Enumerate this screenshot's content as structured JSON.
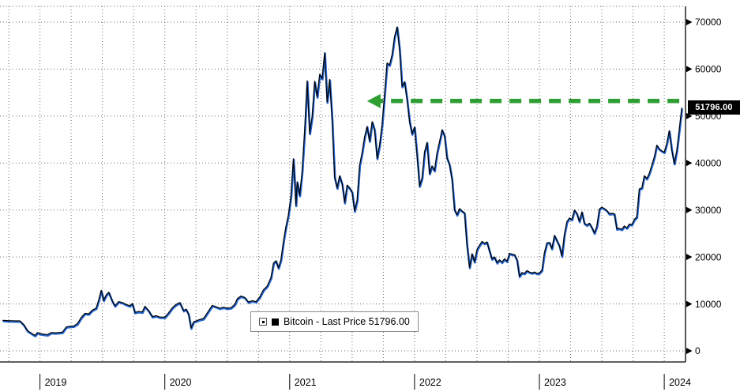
{
  "chart_data": {
    "type": "line",
    "x_range": [
      2018.68,
      2024.17
    ],
    "x_ticks": [
      {
        "t": 2019,
        "label": "2019"
      },
      {
        "t": 2020,
        "label": "2020"
      },
      {
        "t": 2021,
        "label": "2021"
      },
      {
        "t": 2022,
        "label": "2022"
      },
      {
        "t": 2023,
        "label": "2023"
      },
      {
        "t": 2024,
        "label": "2024"
      }
    ],
    "y_ticks": [
      0,
      10000,
      20000,
      30000,
      40000,
      50000,
      60000,
      70000
    ],
    "y_max": 70000,
    "grid": "dotted",
    "legend_position": "bottom-center",
    "last_price": 51796.0,
    "last_price_label": "51796.00",
    "legend": {
      "label": "Bitcoin - Last Price 51796.00"
    },
    "annotation_arrow": {
      "shape": "horizontal-dashed-arrow",
      "direction": "left",
      "color": "#2f9e33",
      "y_value": 53200,
      "x_from": 2024.12,
      "x_to": 2021.62
    },
    "series": [
      {
        "name": "Bitcoin - Last Price",
        "line_colors": {
          "main": "#000000",
          "halo": "#2465cf"
        },
        "points": [
          [
            2018.7,
            6500
          ],
          [
            2018.75,
            6450
          ],
          [
            2018.8,
            6400
          ],
          [
            2018.84,
            6400
          ],
          [
            2018.87,
            5600
          ],
          [
            2018.9,
            4300
          ],
          [
            2018.93,
            3800
          ],
          [
            2018.96,
            3300
          ],
          [
            2018.98,
            3900
          ],
          [
            2019,
            3700
          ],
          [
            2019.03,
            3550
          ],
          [
            2019.06,
            3450
          ],
          [
            2019.09,
            3900
          ],
          [
            2019.12,
            3850
          ],
          [
            2019.15,
            3900
          ],
          [
            2019.18,
            4000
          ],
          [
            2019.21,
            5100
          ],
          [
            2019.24,
            5250
          ],
          [
            2019.27,
            5300
          ],
          [
            2019.3,
            5800
          ],
          [
            2019.33,
            7100
          ],
          [
            2019.36,
            8000
          ],
          [
            2019.39,
            7900
          ],
          [
            2019.42,
            8700
          ],
          [
            2019.45,
            9100
          ],
          [
            2019.47,
            10800
          ],
          [
            2019.49,
            12900
          ],
          [
            2019.51,
            10800
          ],
          [
            2019.53,
            11900
          ],
          [
            2019.55,
            12500
          ],
          [
            2019.58,
            10600
          ],
          [
            2019.6,
            9600
          ],
          [
            2019.63,
            10500
          ],
          [
            2019.66,
            10300
          ],
          [
            2019.69,
            9900
          ],
          [
            2019.72,
            9600
          ],
          [
            2019.74,
            10100
          ],
          [
            2019.76,
            8200
          ],
          [
            2019.79,
            8400
          ],
          [
            2019.82,
            8300
          ],
          [
            2019.84,
            9500
          ],
          [
            2019.87,
            8600
          ],
          [
            2019.9,
            7300
          ],
          [
            2019.93,
            7500
          ],
          [
            2019.96,
            7200
          ],
          [
            2019.98,
            7200
          ],
          [
            2020,
            7200
          ],
          [
            2020.03,
            8100
          ],
          [
            2020.06,
            9200
          ],
          [
            2020.09,
            9900
          ],
          [
            2020.12,
            10300
          ],
          [
            2020.15,
            8600
          ],
          [
            2020.17,
            8900
          ],
          [
            2020.19,
            7900
          ],
          [
            2020.21,
            4900
          ],
          [
            2020.23,
            6200
          ],
          [
            2020.25,
            6400
          ],
          [
            2020.28,
            6700
          ],
          [
            2020.31,
            6900
          ],
          [
            2020.33,
            7700
          ],
          [
            2020.36,
            8900
          ],
          [
            2020.38,
            9700
          ],
          [
            2020.41,
            9400
          ],
          [
            2020.44,
            9100
          ],
          [
            2020.47,
            9300
          ],
          [
            2020.5,
            9100
          ],
          [
            2020.53,
            9200
          ],
          [
            2020.56,
            9900
          ],
          [
            2020.58,
            11100
          ],
          [
            2020.61,
            11700
          ],
          [
            2020.64,
            11400
          ],
          [
            2020.67,
            10400
          ],
          [
            2020.7,
            10700
          ],
          [
            2020.73,
            10500
          ],
          [
            2020.76,
            11500
          ],
          [
            2020.79,
            13000
          ],
          [
            2020.82,
            13800
          ],
          [
            2020.85,
            15600
          ],
          [
            2020.87,
            18700
          ],
          [
            2020.89,
            19200
          ],
          [
            2020.91,
            17700
          ],
          [
            2020.93,
            19400
          ],
          [
            2020.95,
            23300
          ],
          [
            2020.97,
            26500
          ],
          [
            2020.99,
            29000
          ],
          [
            2021.01,
            33000
          ],
          [
            2021.03,
            40900
          ],
          [
            2021.05,
            31000
          ],
          [
            2021.06,
            36000
          ],
          [
            2021.08,
            33100
          ],
          [
            2021.1,
            38300
          ],
          [
            2021.12,
            47000
          ],
          [
            2021.14,
            57500
          ],
          [
            2021.16,
            46300
          ],
          [
            2021.18,
            50000
          ],
          [
            2021.2,
            57400
          ],
          [
            2021.22,
            54100
          ],
          [
            2021.24,
            58900
          ],
          [
            2021.26,
            58000
          ],
          [
            2021.28,
            63500
          ],
          [
            2021.3,
            53000
          ],
          [
            2021.32,
            57800
          ],
          [
            2021.34,
            49000
          ],
          [
            2021.36,
            37000
          ],
          [
            2021.38,
            34700
          ],
          [
            2021.4,
            37300
          ],
          [
            2021.42,
            35600
          ],
          [
            2021.44,
            31600
          ],
          [
            2021.46,
            35300
          ],
          [
            2021.48,
            34700
          ],
          [
            2021.5,
            33800
          ],
          [
            2021.52,
            29800
          ],
          [
            2021.54,
            32100
          ],
          [
            2021.56,
            39500
          ],
          [
            2021.58,
            42200
          ],
          [
            2021.6,
            45600
          ],
          [
            2021.62,
            47800
          ],
          [
            2021.64,
            44700
          ],
          [
            2021.66,
            48800
          ],
          [
            2021.68,
            47100
          ],
          [
            2021.7,
            41000
          ],
          [
            2021.72,
            43800
          ],
          [
            2021.74,
            48200
          ],
          [
            2021.76,
            54700
          ],
          [
            2021.78,
            61300
          ],
          [
            2021.8,
            60900
          ],
          [
            2021.82,
            63100
          ],
          [
            2021.84,
            66900
          ],
          [
            2021.86,
            69000
          ],
          [
            2021.88,
            64300
          ],
          [
            2021.9,
            56300
          ],
          [
            2021.92,
            57300
          ],
          [
            2021.94,
            53600
          ],
          [
            2021.96,
            48900
          ],
          [
            2021.98,
            46200
          ],
          [
            2022,
            47700
          ],
          [
            2022.02,
            41600
          ],
          [
            2022.04,
            35100
          ],
          [
            2022.06,
            36800
          ],
          [
            2022.08,
            42400
          ],
          [
            2022.1,
            44400
          ],
          [
            2022.12,
            37800
          ],
          [
            2022.14,
            39400
          ],
          [
            2022.16,
            38400
          ],
          [
            2022.18,
            42200
          ],
          [
            2022.2,
            44500
          ],
          [
            2022.22,
            47100
          ],
          [
            2022.24,
            45800
          ],
          [
            2022.26,
            41100
          ],
          [
            2022.28,
            39700
          ],
          [
            2022.3,
            36600
          ],
          [
            2022.32,
            30100
          ],
          [
            2022.34,
            29000
          ],
          [
            2022.36,
            30300
          ],
          [
            2022.38,
            29800
          ],
          [
            2022.4,
            29400
          ],
          [
            2022.42,
            22500
          ],
          [
            2022.44,
            17800
          ],
          [
            2022.46,
            20700
          ],
          [
            2022.48,
            19000
          ],
          [
            2022.5,
            21600
          ],
          [
            2022.52,
            22500
          ],
          [
            2022.54,
            23300
          ],
          [
            2022.56,
            22900
          ],
          [
            2022.58,
            23200
          ],
          [
            2022.6,
            21300
          ],
          [
            2022.62,
            19600
          ],
          [
            2022.64,
            20000
          ],
          [
            2022.66,
            18800
          ],
          [
            2022.68,
            19400
          ],
          [
            2022.7,
            18900
          ],
          [
            2022.72,
            19600
          ],
          [
            2022.74,
            19100
          ],
          [
            2022.76,
            20800
          ],
          [
            2022.78,
            20600
          ],
          [
            2022.8,
            20500
          ],
          [
            2022.82,
            19400
          ],
          [
            2022.84,
            15900
          ],
          [
            2022.86,
            16700
          ],
          [
            2022.88,
            16500
          ],
          [
            2022.9,
            17100
          ],
          [
            2022.92,
            16800
          ],
          [
            2022.94,
            16600
          ],
          [
            2022.96,
            16800
          ],
          [
            2022.98,
            16500
          ],
          [
            2023,
            16600
          ],
          [
            2023.02,
            17200
          ],
          [
            2023.04,
            20900
          ],
          [
            2023.06,
            23000
          ],
          [
            2023.08,
            23100
          ],
          [
            2023.1,
            21800
          ],
          [
            2023.12,
            24600
          ],
          [
            2023.14,
            23500
          ],
          [
            2023.16,
            22400
          ],
          [
            2023.18,
            20200
          ],
          [
            2023.2,
            24800
          ],
          [
            2023.22,
            27500
          ],
          [
            2023.24,
            28300
          ],
          [
            2023.26,
            28000
          ],
          [
            2023.28,
            30000
          ],
          [
            2023.3,
            29300
          ],
          [
            2023.32,
            27600
          ],
          [
            2023.34,
            29600
          ],
          [
            2023.36,
            27200
          ],
          [
            2023.38,
            26800
          ],
          [
            2023.4,
            27200
          ],
          [
            2023.42,
            26300
          ],
          [
            2023.44,
            25100
          ],
          [
            2023.46,
            26500
          ],
          [
            2023.48,
            30200
          ],
          [
            2023.5,
            30600
          ],
          [
            2023.52,
            30300
          ],
          [
            2023.54,
            29900
          ],
          [
            2023.56,
            29200
          ],
          [
            2023.58,
            29300
          ],
          [
            2023.6,
            29200
          ],
          [
            2023.62,
            26000
          ],
          [
            2023.64,
            26100
          ],
          [
            2023.66,
            25900
          ],
          [
            2023.68,
            26600
          ],
          [
            2023.7,
            26200
          ],
          [
            2023.72,
            27000
          ],
          [
            2023.74,
            26900
          ],
          [
            2023.76,
            28000
          ],
          [
            2023.78,
            28500
          ],
          [
            2023.8,
            34500
          ],
          [
            2023.82,
            34700
          ],
          [
            2023.84,
            37300
          ],
          [
            2023.86,
            36700
          ],
          [
            2023.88,
            37800
          ],
          [
            2023.9,
            39500
          ],
          [
            2023.92,
            41300
          ],
          [
            2023.94,
            43800
          ],
          [
            2023.96,
            43000
          ],
          [
            2023.98,
            42600
          ],
          [
            2024,
            42300
          ],
          [
            2024.02,
            44200
          ],
          [
            2024.04,
            46900
          ],
          [
            2024.06,
            42800
          ],
          [
            2024.08,
            39900
          ],
          [
            2024.1,
            42600
          ],
          [
            2024.12,
            47100
          ],
          [
            2024.13,
            49500
          ],
          [
            2024.14,
            51796
          ]
        ]
      }
    ]
  },
  "colors": {
    "grid": "#6e6e6e",
    "frame": "#000000",
    "flag_bg": "#000000",
    "flag_text": "#ffffff"
  }
}
